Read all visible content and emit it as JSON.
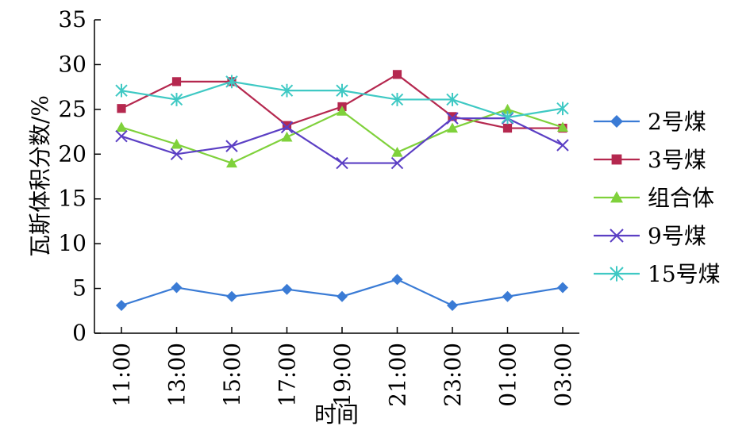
{
  "chart_data": {
    "type": "line",
    "title": "",
    "xlabel": "时间",
    "ylabel": "瓦斯体积分数/%",
    "categories": [
      "11:00",
      "13:00",
      "15:00",
      "17:00",
      "19:00",
      "21:00",
      "23:00",
      "01:00",
      "03:00"
    ],
    "ylim": [
      0,
      35
    ],
    "yticks": [
      0,
      5,
      10,
      15,
      20,
      25,
      30,
      35
    ],
    "grid": false,
    "legend_position": "right",
    "series": [
      {
        "name": "2号煤",
        "color": "#3a7bd5",
        "marker": "diamond",
        "values": [
          3.1,
          5.1,
          4.1,
          4.9,
          4.1,
          6.0,
          3.1,
          4.1,
          5.1
        ]
      },
      {
        "name": "3号煤",
        "color": "#b5284f",
        "marker": "square",
        "values": [
          25.1,
          28.1,
          28.1,
          23.2,
          25.3,
          28.9,
          24.2,
          22.9,
          22.9
        ]
      },
      {
        "name": "组合体",
        "color": "#7fd13b",
        "marker": "triangle",
        "values": [
          23.0,
          21.1,
          19.0,
          21.9,
          24.8,
          20.2,
          22.9,
          25.0,
          23.0
        ]
      },
      {
        "name": "9号煤",
        "color": "#5b3fc4",
        "marker": "x",
        "values": [
          22.0,
          20.0,
          20.9,
          23.0,
          19.0,
          19.0,
          24.0,
          24.0,
          21.0
        ]
      },
      {
        "name": "15号煤",
        "color": "#3fc9c4",
        "marker": "star",
        "values": [
          27.1,
          26.1,
          28.1,
          27.1,
          27.1,
          26.1,
          26.1,
          24.1,
          25.1
        ]
      }
    ]
  }
}
